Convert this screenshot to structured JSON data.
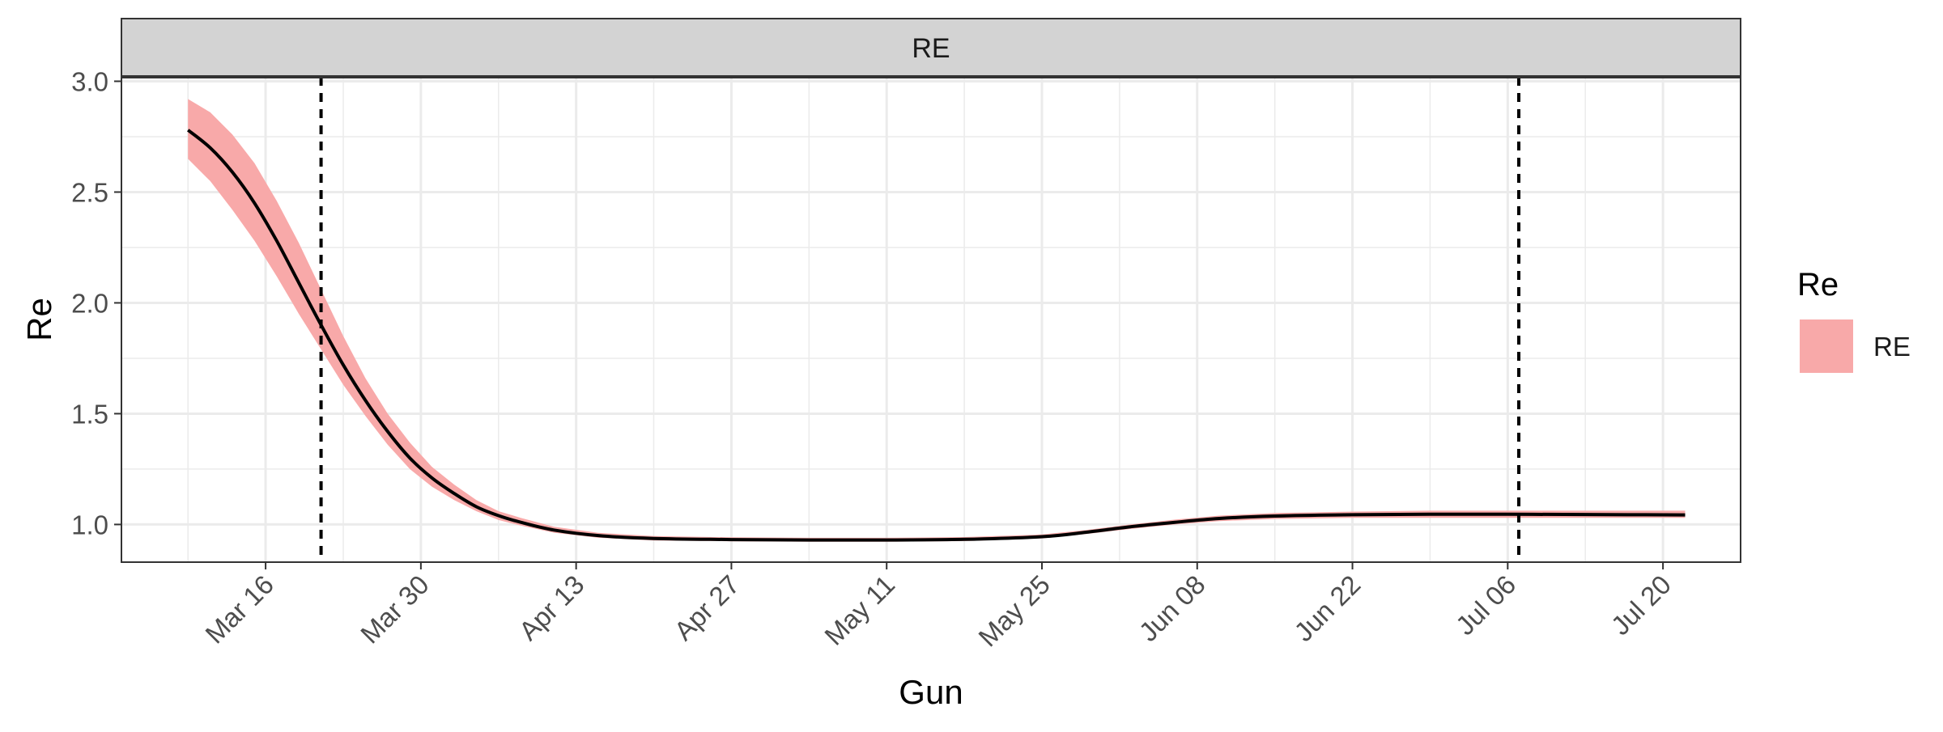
{
  "chart_data": {
    "type": "line",
    "facet_label": "RE",
    "xlabel": "Gun",
    "ylabel": "Re",
    "x_ticks": [
      "2020-03-16",
      "2020-03-30",
      "2020-04-13",
      "2020-04-27",
      "2020-05-11",
      "2020-05-25",
      "2020-06-08",
      "2020-06-22",
      "2020-07-06",
      "2020-07-20"
    ],
    "x_tick_labels": [
      "Mar 16",
      "Mar 30",
      "Apr 13",
      "Apr 27",
      "May 11",
      "May 25",
      "Jun 08",
      "Jun 22",
      "Jul 06",
      "Jul 20"
    ],
    "y_ticks": [
      1.0,
      1.5,
      2.0,
      2.5,
      3.0
    ],
    "y_tick_labels": [
      "1.0",
      "1.5",
      "2.0",
      "2.5",
      "3.0"
    ],
    "xlim": [
      "2020-03-03",
      "2020-07-27"
    ],
    "ylim": [
      0.83,
      3.02
    ],
    "grid": true,
    "legend": {
      "title": "Re",
      "position": "right",
      "entries": [
        {
          "label": "RE",
          "color": "#F8A9A9"
        }
      ]
    },
    "vlines": [
      {
        "x": "2020-03-21",
        "style": "dashed"
      },
      {
        "x": "2020-07-07",
        "style": "dashed"
      }
    ],
    "series": [
      {
        "name": "RE",
        "line_color": "#000000",
        "band_color": "#F8A9A9",
        "x": [
          "2020-03-09",
          "2020-03-11",
          "2020-03-13",
          "2020-03-15",
          "2020-03-17",
          "2020-03-19",
          "2020-03-21",
          "2020-03-23",
          "2020-03-25",
          "2020-03-27",
          "2020-03-29",
          "2020-03-31",
          "2020-04-02",
          "2020-04-04",
          "2020-04-06",
          "2020-04-08",
          "2020-04-11",
          "2020-04-15",
          "2020-04-20",
          "2020-04-27",
          "2020-05-04",
          "2020-05-11",
          "2020-05-18",
          "2020-05-25",
          "2020-05-29",
          "2020-06-02",
          "2020-06-06",
          "2020-06-10",
          "2020-06-15",
          "2020-06-22",
          "2020-06-29",
          "2020-07-06",
          "2020-07-13",
          "2020-07-22"
        ],
        "y": [
          2.78,
          2.7,
          2.59,
          2.45,
          2.28,
          2.09,
          1.9,
          1.72,
          1.56,
          1.42,
          1.3,
          1.21,
          1.14,
          1.08,
          1.04,
          1.01,
          0.975,
          0.95,
          0.937,
          0.932,
          0.93,
          0.93,
          0.933,
          0.945,
          0.965,
          0.99,
          1.01,
          1.027,
          1.038,
          1.044,
          1.046,
          1.046,
          1.045,
          1.043
        ],
        "lower": [
          2.65,
          2.55,
          2.42,
          2.28,
          2.12,
          1.95,
          1.79,
          1.63,
          1.49,
          1.36,
          1.25,
          1.17,
          1.11,
          1.06,
          1.02,
          0.995,
          0.963,
          0.94,
          0.928,
          0.924,
          0.922,
          0.922,
          0.925,
          0.937,
          0.957,
          0.98,
          1.0,
          1.015,
          1.025,
          1.03,
          1.03,
          1.03,
          1.03,
          1.03
        ],
        "upper": [
          2.92,
          2.86,
          2.76,
          2.63,
          2.46,
          2.27,
          2.06,
          1.85,
          1.66,
          1.5,
          1.37,
          1.26,
          1.18,
          1.11,
          1.06,
          1.03,
          0.99,
          0.962,
          0.948,
          0.942,
          0.94,
          0.94,
          0.943,
          0.955,
          0.975,
          1.0,
          1.022,
          1.04,
          1.052,
          1.058,
          1.062,
          1.062,
          1.062,
          1.062
        ]
      }
    ]
  }
}
